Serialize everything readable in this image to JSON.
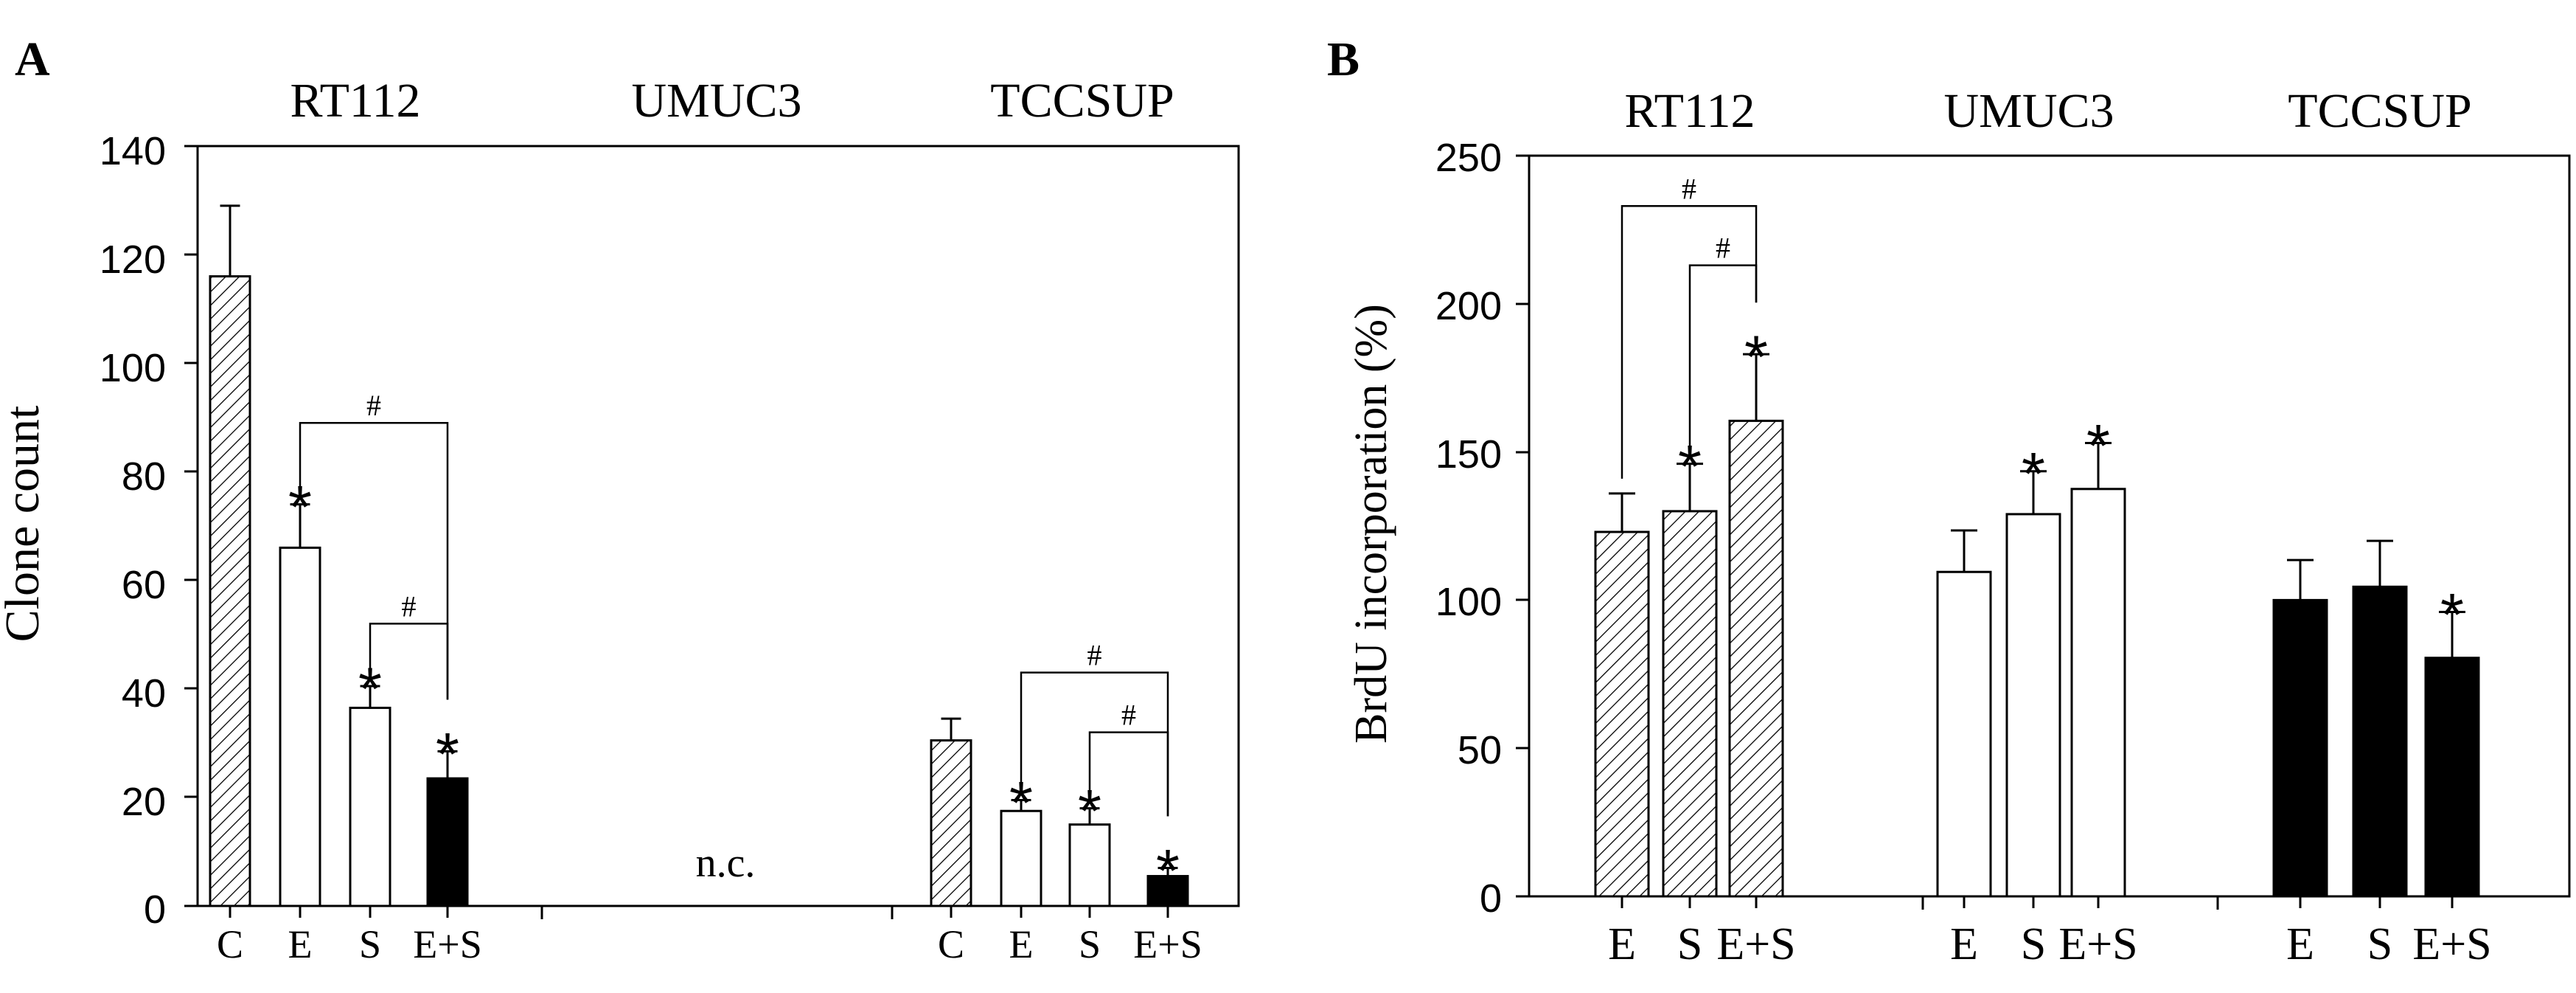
{
  "colors": {
    "ink": "#000000",
    "paper": "#ffffff"
  },
  "chart_data": [
    {
      "type": "bar",
      "panel_label": "A",
      "title": "",
      "xlabel": "",
      "ylabel": "Clone count",
      "ylim": [
        0,
        140
      ],
      "yticks": [
        0,
        20,
        40,
        60,
        80,
        100,
        120,
        140
      ],
      "groups": [
        {
          "name": "RT112",
          "categories": [
            "C",
            "E",
            "S",
            "E+S"
          ],
          "values": [
            116,
            66,
            36.5,
            23.5
          ],
          "errors": [
            13,
            8,
            4,
            5
          ],
          "fills": [
            "hatched",
            "white",
            "white",
            "black"
          ],
          "stars": [
            false,
            true,
            true,
            true
          ]
        },
        {
          "name": "UMUC3",
          "categories": [],
          "values": [],
          "errors": [],
          "fills": [],
          "stars": [],
          "note": "n.c."
        },
        {
          "name": "TCCSUP",
          "categories": [
            "C",
            "E",
            "S",
            "E+S"
          ],
          "values": [
            30.5,
            17.5,
            15,
            5.5
          ],
          "errors": [
            4,
            2,
            3,
            1.5
          ],
          "fills": [
            "hatched",
            "white",
            "white",
            "black"
          ],
          "stars": [
            false,
            true,
            true,
            true
          ]
        }
      ],
      "significance": [
        {
          "group": "RT112",
          "from": "E",
          "to": "E+S",
          "label": "#",
          "y": 89
        },
        {
          "group": "RT112",
          "from": "S",
          "to": "E+S",
          "label": "#",
          "y": 52
        },
        {
          "group": "TCCSUP",
          "from": "E",
          "to": "E+S",
          "label": "#",
          "y": 43
        },
        {
          "group": "TCCSUP",
          "from": "S",
          "to": "E+S",
          "label": "#",
          "y": 32
        }
      ],
      "star_symbol": "*"
    },
    {
      "type": "bar",
      "panel_label": "B",
      "title": "",
      "xlabel": "",
      "ylabel": "BrdU incorporation  (%)",
      "ylim": [
        0,
        250
      ],
      "yticks": [
        0,
        50,
        100,
        150,
        200,
        250
      ],
      "groups": [
        {
          "name": "RT112",
          "categories": [
            "E",
            "S",
            "E+S"
          ],
          "values": [
            123,
            130,
            160.5
          ],
          "errors": [
            13,
            16,
            22.5
          ],
          "fills": [
            "hatched",
            "hatched",
            "hatched"
          ],
          "stars": [
            false,
            true,
            true
          ]
        },
        {
          "name": "UMUC3",
          "categories": [
            "E",
            "S",
            "E+S"
          ],
          "values": [
            109.5,
            129,
            137.5
          ],
          "errors": [
            14,
            14.5,
            15.5
          ],
          "fills": [
            "white",
            "white",
            "white"
          ],
          "stars": [
            false,
            true,
            true
          ]
        },
        {
          "name": "TCCSUP",
          "categories": [
            "E",
            "S",
            "E+S"
          ],
          "values": [
            100,
            104.5,
            80.5
          ],
          "errors": [
            13.5,
            15.5,
            15.5
          ],
          "fills": [
            "black",
            "black",
            "black"
          ],
          "stars": [
            false,
            false,
            true
          ]
        }
      ],
      "significance": [
        {
          "group": "RT112",
          "from": "E",
          "to": "E+S",
          "label": "#",
          "y": 233
        },
        {
          "group": "RT112",
          "from": "S",
          "to": "E+S",
          "label": "#",
          "y": 213
        }
      ],
      "star_symbol": "*"
    }
  ]
}
